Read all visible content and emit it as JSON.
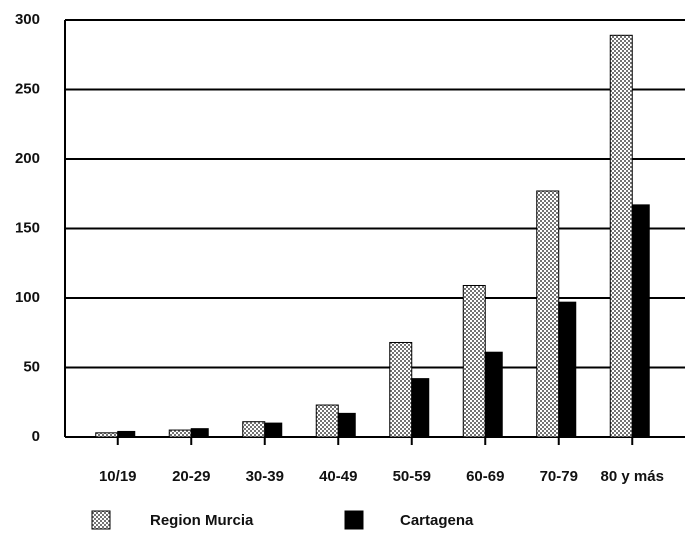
{
  "chart_data": {
    "type": "bar",
    "categories": [
      "10/19",
      "20-29",
      "30-39",
      "40-49",
      "50-59",
      "60-69",
      "70-79",
      "80 y más"
    ],
    "series": [
      {
        "name": "Region Murcia",
        "color": "#ffffff",
        "values": [
          3,
          5,
          11,
          23,
          68,
          109,
          177,
          289
        ]
      },
      {
        "name": "Cartagena",
        "color": "#000000",
        "values": [
          4,
          6,
          10,
          17,
          42,
          61,
          97,
          167
        ]
      }
    ],
    "ylim": [
      0,
      300
    ],
    "yticks": [
      0,
      50,
      100,
      150,
      200,
      250,
      300
    ],
    "grid": true
  }
}
